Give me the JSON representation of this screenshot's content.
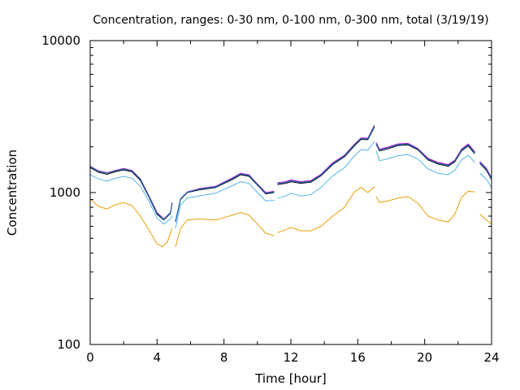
{
  "chart_data": {
    "type": "line",
    "title": "Concentration, ranges: 0-30 nm, 0-100 nm, 0-300 nm, total (3/19/19)",
    "xlabel": "Time [hour]",
    "ylabel": "Concentration",
    "xlim": [
      0,
      24
    ],
    "ylim": [
      100,
      10000
    ],
    "yscale": "log",
    "grid": false,
    "x_ticks": [
      0,
      4,
      8,
      12,
      16,
      20,
      24
    ],
    "x_tick_labels": [
      "0",
      "4",
      "8",
      "12",
      "16",
      "20",
      "24"
    ],
    "y_ticks": [
      100,
      1000,
      10000
    ],
    "y_tick_labels": [
      "100",
      "1000",
      "10000"
    ],
    "series": [
      {
        "color": "#E69F00",
        "segments": [
          [
            [
              0,
              910
            ],
            [
              0.5,
              810
            ],
            [
              1,
              780
            ],
            [
              1.5,
              830
            ],
            [
              2,
              860
            ],
            [
              2.5,
              820
            ],
            [
              3,
              700
            ],
            [
              3.5,
              570
            ],
            [
              4,
              460
            ],
            [
              4.3,
              440
            ],
            [
              4.6,
              470
            ],
            [
              4.9,
              580
            ]
          ],
          [
            [
              5.1,
              440
            ],
            [
              5.4,
              580
            ],
            [
              5.8,
              660
            ],
            [
              6.5,
              670
            ],
            [
              7.5,
              660
            ],
            [
              8.5,
              710
            ],
            [
              9,
              740
            ],
            [
              9.5,
              710
            ],
            [
              10,
              620
            ],
            [
              10.5,
              540
            ],
            [
              11,
              520
            ]
          ],
          [
            [
              11.2,
              545
            ],
            [
              11.7,
              570
            ],
            [
              12,
              590
            ],
            [
              12.6,
              560
            ],
            [
              13.2,
              560
            ],
            [
              13.8,
              600
            ],
            [
              14.5,
              700
            ],
            [
              15.2,
              800
            ],
            [
              15.8,
              1010
            ],
            [
              16.2,
              1080
            ],
            [
              16.6,
              1000
            ],
            [
              17,
              1090
            ]
          ],
          [
            [
              17.1,
              940
            ],
            [
              17.3,
              860
            ],
            [
              17.8,
              880
            ],
            [
              18.4,
              920
            ],
            [
              19,
              940
            ],
            [
              19.6,
              850
            ],
            [
              20.2,
              700
            ],
            [
              20.8,
              660
            ],
            [
              21.4,
              640
            ],
            [
              21.8,
              720
            ],
            [
              22.2,
              930
            ],
            [
              22.6,
              1020
            ],
            [
              23,
              1010
            ]
          ],
          [
            [
              23.3,
              720
            ],
            [
              23.7,
              660
            ],
            [
              24,
              620
            ]
          ]
        ]
      },
      {
        "color": "#56B4E9",
        "segments": [
          [
            [
              0,
              1310
            ],
            [
              0.5,
              1230
            ],
            [
              1,
              1190
            ],
            [
              1.5,
              1240
            ],
            [
              2,
              1280
            ],
            [
              2.5,
              1240
            ],
            [
              3,
              1100
            ],
            [
              3.5,
              880
            ],
            [
              4,
              680
            ],
            [
              4.4,
              620
            ],
            [
              4.8,
              670
            ],
            [
              4.9,
              700
            ]
          ],
          [
            [
              5.1,
              580
            ],
            [
              5.4,
              830
            ],
            [
              5.8,
              920
            ],
            [
              6.5,
              950
            ],
            [
              7.5,
              990
            ],
            [
              8.5,
              1110
            ],
            [
              9,
              1180
            ],
            [
              9.5,
              1150
            ],
            [
              10,
              1000
            ],
            [
              10.5,
              880
            ],
            [
              11,
              890
            ]
          ],
          [
            [
              11.2,
              920
            ],
            [
              11.7,
              950
            ],
            [
              12,
              990
            ],
            [
              12.6,
              950
            ],
            [
              13.2,
              970
            ],
            [
              13.8,
              1080
            ],
            [
              14.5,
              1290
            ],
            [
              15.2,
              1460
            ],
            [
              15.8,
              1740
            ],
            [
              16.2,
              1920
            ],
            [
              16.6,
              1900
            ],
            [
              17,
              2170
            ]
          ],
          [
            [
              17.1,
              1890
            ],
            [
              17.3,
              1620
            ],
            [
              17.8,
              1670
            ],
            [
              18.4,
              1750
            ],
            [
              19,
              1780
            ],
            [
              19.6,
              1660
            ],
            [
              20.2,
              1430
            ],
            [
              20.8,
              1340
            ],
            [
              21.4,
              1310
            ],
            [
              21.8,
              1400
            ],
            [
              22.2,
              1640
            ],
            [
              22.6,
              1760
            ],
            [
              23,
              1580
            ]
          ],
          [
            [
              23.3,
              1340
            ],
            [
              23.7,
              1220
            ],
            [
              24,
              1080
            ]
          ]
        ]
      },
      {
        "color": "#000000",
        "segments": [
          [
            [
              0,
              1460
            ],
            [
              0.5,
              1360
            ],
            [
              1,
              1320
            ],
            [
              1.5,
              1370
            ],
            [
              2,
              1410
            ],
            [
              2.5,
              1370
            ],
            [
              3,
              1200
            ],
            [
              3.5,
              940
            ],
            [
              4,
              720
            ],
            [
              4.4,
              660
            ],
            [
              4.8,
              730
            ],
            [
              4.9,
              850
            ]
          ],
          [
            [
              5.1,
              640
            ],
            [
              5.4,
              900
            ],
            [
              5.8,
              1000
            ],
            [
              6.5,
              1040
            ],
            [
              7.5,
              1080
            ],
            [
              8.5,
              1220
            ],
            [
              9,
              1310
            ],
            [
              9.5,
              1280
            ],
            [
              10,
              1120
            ],
            [
              10.5,
              980
            ],
            [
              11,
              1000
            ]
          ],
          [
            [
              11.2,
              1130
            ],
            [
              11.7,
              1150
            ],
            [
              12,
              1180
            ],
            [
              12.6,
              1150
            ],
            [
              13.2,
              1170
            ],
            [
              13.8,
              1290
            ],
            [
              14.5,
              1530
            ],
            [
              15.2,
              1720
            ],
            [
              15.8,
              2030
            ],
            [
              16.2,
              2240
            ],
            [
              16.6,
              2230
            ],
            [
              17,
              2700
            ]
          ],
          [
            [
              17.1,
              2080
            ],
            [
              17.3,
              1880
            ],
            [
              17.8,
              1940
            ],
            [
              18.4,
              2040
            ],
            [
              19,
              2060
            ],
            [
              19.6,
              1910
            ],
            [
              20.2,
              1640
            ],
            [
              20.8,
              1540
            ],
            [
              21.4,
              1490
            ],
            [
              21.8,
              1590
            ],
            [
              22.2,
              1880
            ],
            [
              22.6,
              2030
            ],
            [
              23,
              1800
            ]
          ],
          [
            [
              23.3,
              1560
            ],
            [
              23.7,
              1400
            ],
            [
              24,
              1220
            ]
          ]
        ]
      },
      {
        "color": "#CC00CC",
        "segments": [
          [
            [
              0,
              1490
            ],
            [
              0.5,
              1390
            ],
            [
              1,
              1350
            ],
            [
              1.5,
              1400
            ],
            [
              2,
              1440
            ],
            [
              2.5,
              1400
            ],
            [
              3,
              1230
            ],
            [
              3.5,
              960
            ],
            [
              4,
              740
            ],
            [
              4.4,
              670
            ],
            [
              4.8,
              740
            ],
            [
              4.9,
              860
            ]
          ],
          [
            [
              5.1,
              650
            ],
            [
              5.4,
              910
            ],
            [
              5.8,
              1010
            ],
            [
              6.5,
              1060
            ],
            [
              7.5,
              1100
            ],
            [
              8.5,
              1250
            ],
            [
              9,
              1340
            ],
            [
              9.5,
              1310
            ],
            [
              10,
              1140
            ],
            [
              10.5,
              1000
            ],
            [
              11,
              1020
            ]
          ],
          [
            [
              11.2,
              1160
            ],
            [
              11.7,
              1180
            ],
            [
              12,
              1210
            ],
            [
              12.6,
              1180
            ],
            [
              13.2,
              1200
            ],
            [
              13.8,
              1320
            ],
            [
              14.5,
              1570
            ],
            [
              15.2,
              1760
            ],
            [
              15.8,
              2080
            ],
            [
              16.2,
              2290
            ],
            [
              16.6,
              2280
            ],
            [
              17,
              2780
            ]
          ],
          [
            [
              17.1,
              2130
            ],
            [
              17.3,
              1930
            ],
            [
              17.8,
              1990
            ],
            [
              18.4,
              2090
            ],
            [
              19,
              2110
            ],
            [
              19.6,
              1950
            ],
            [
              20.2,
              1680
            ],
            [
              20.8,
              1580
            ],
            [
              21.4,
              1530
            ],
            [
              21.8,
              1630
            ],
            [
              22.2,
              1930
            ],
            [
              22.6,
              2090
            ],
            [
              23,
              1850
            ]
          ],
          [
            [
              23.3,
              1600
            ],
            [
              23.7,
              1440
            ],
            [
              24,
              1250
            ]
          ]
        ]
      },
      {
        "color": "#0072B2",
        "segments": [
          [
            [
              0,
              1480
            ],
            [
              0.5,
              1380
            ],
            [
              1,
              1340
            ],
            [
              1.5,
              1390
            ],
            [
              2,
              1430
            ],
            [
              2.5,
              1390
            ],
            [
              3,
              1220
            ],
            [
              3.5,
              950
            ],
            [
              4,
              730
            ],
            [
              4.4,
              665
            ],
            [
              4.8,
              735
            ],
            [
              4.9,
              855
            ]
          ],
          [
            [
              5.1,
              645
            ],
            [
              5.4,
              905
            ],
            [
              5.8,
              1005
            ],
            [
              6.5,
              1050
            ],
            [
              7.5,
              1090
            ],
            [
              8.5,
              1235
            ],
            [
              9,
              1325
            ],
            [
              9.5,
              1295
            ],
            [
              10,
              1130
            ],
            [
              10.5,
              990
            ],
            [
              11,
              1010
            ]
          ],
          [
            [
              11.2,
              1145
            ],
            [
              11.7,
              1165
            ],
            [
              12,
              1195
            ],
            [
              12.6,
              1165
            ],
            [
              13.2,
              1185
            ],
            [
              13.8,
              1305
            ],
            [
              14.5,
              1550
            ],
            [
              15.2,
              1740
            ],
            [
              15.8,
              2055
            ],
            [
              16.2,
              2265
            ],
            [
              16.6,
              2255
            ],
            [
              17,
              2740
            ]
          ],
          [
            [
              17.1,
              2105
            ],
            [
              17.3,
              1905
            ],
            [
              17.8,
              1965
            ],
            [
              18.4,
              2065
            ],
            [
              19,
              2085
            ],
            [
              19.6,
              1930
            ],
            [
              20.2,
              1660
            ],
            [
              20.8,
              1560
            ],
            [
              21.4,
              1510
            ],
            [
              21.8,
              1610
            ],
            [
              22.2,
              1905
            ],
            [
              22.6,
              2060
            ],
            [
              23,
              1825
            ]
          ],
          [
            [
              23.3,
              1580
            ],
            [
              23.7,
              1420
            ],
            [
              24,
              1235
            ]
          ]
        ]
      }
    ]
  }
}
